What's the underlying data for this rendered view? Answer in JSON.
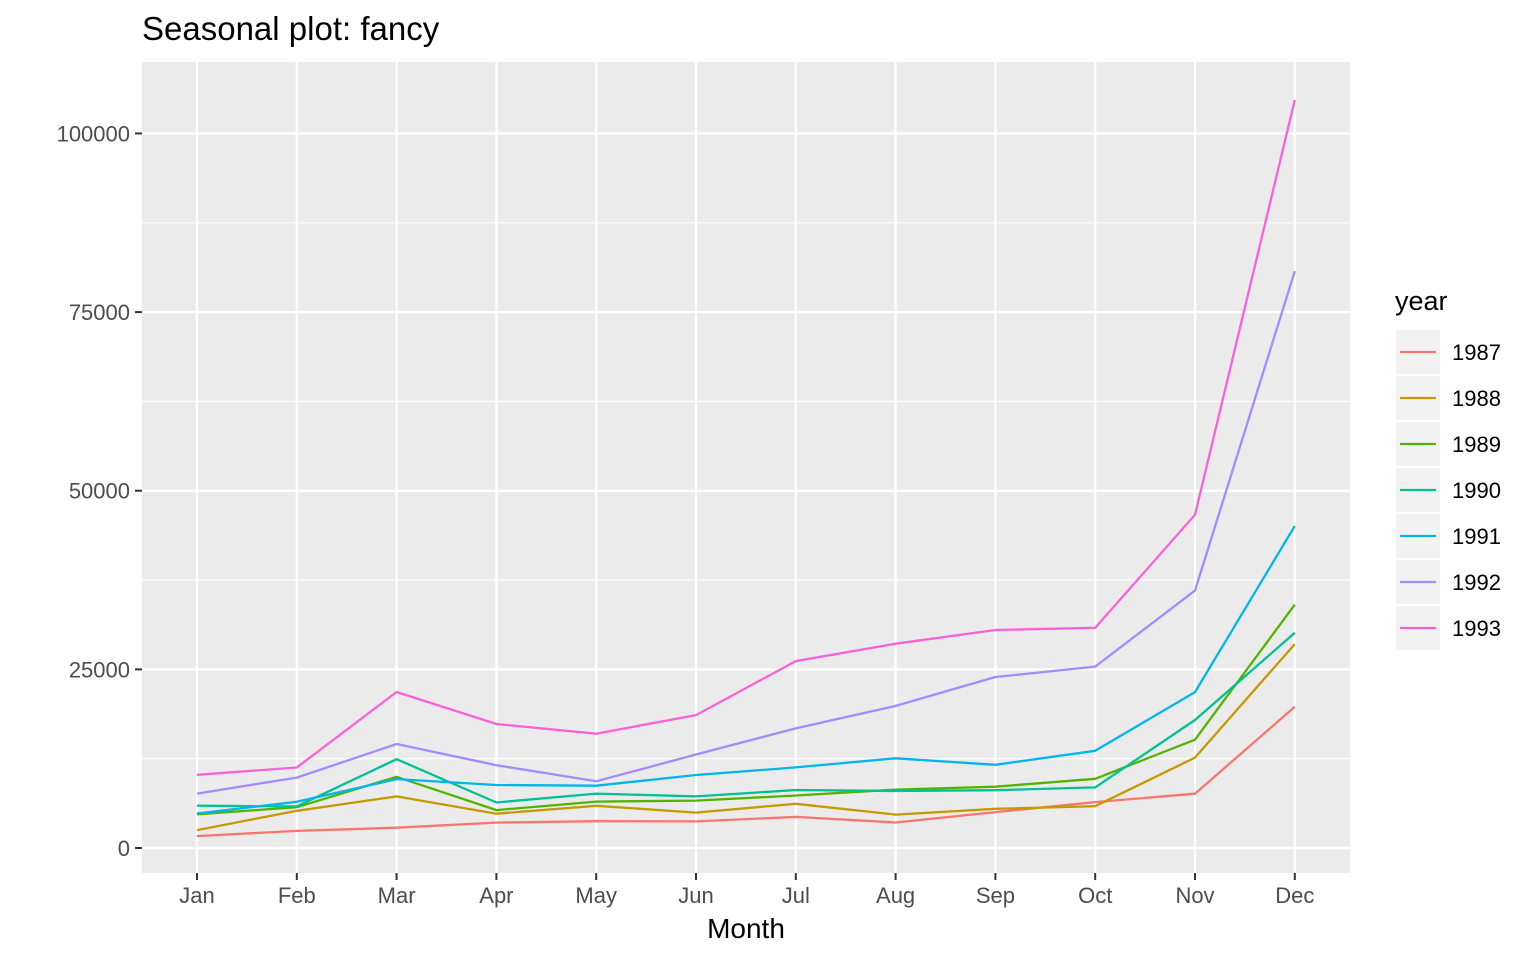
{
  "chart_data": {
    "type": "line",
    "title": "Seasonal plot: fancy",
    "xlabel": "Month",
    "ylabel": "",
    "categories": [
      "Jan",
      "Feb",
      "Mar",
      "Apr",
      "May",
      "Jun",
      "Jul",
      "Aug",
      "Sep",
      "Oct",
      "Nov",
      "Dec"
    ],
    "yticks": [
      0,
      25000,
      50000,
      75000,
      100000
    ],
    "ytick_labels": [
      "0",
      "25000",
      "50000",
      "75000",
      "100000"
    ],
    "ylim": [
      -3500,
      110000
    ],
    "grid": true,
    "legend": {
      "title": "year",
      "position": "right"
    },
    "series": [
      {
        "name": "1987",
        "color": "#F8766D",
        "values": [
          1664,
          2397,
          2841,
          3547,
          3753,
          3715,
          4350,
          3567,
          5022,
          6424,
          7601,
          19756
        ]
      },
      {
        "name": "1988",
        "color": "#C49A00",
        "values": [
          2499,
          5198,
          7225,
          4806,
          5900,
          4951,
          6180,
          4678,
          5486,
          5848,
          12649,
          28541
        ]
      },
      {
        "name": "1989",
        "color": "#53B400",
        "values": [
          4717,
          5703,
          9958,
          5304,
          6492,
          6631,
          7350,
          8177,
          8573,
          9690,
          15151,
          34061
        ]
      },
      {
        "name": "1990",
        "color": "#00C094",
        "values": [
          5921,
          5815,
          12421,
          6370,
          7609,
          7224,
          8121,
          7979,
          8093,
          8476,
          17915,
          30114
        ]
      },
      {
        "name": "1991",
        "color": "#00B6EB",
        "values": [
          4826,
          6470,
          9639,
          8821,
          8722,
          10209,
          11277,
          12552,
          11637,
          13607,
          21822,
          45060
        ]
      },
      {
        "name": "1992",
        "color": "#A58AFF",
        "values": [
          7615,
          9850,
          14558,
          11587,
          9332,
          13082,
          16732,
          19889,
          23933,
          25391,
          36025,
          80721
        ]
      },
      {
        "name": "1993",
        "color": "#FB61D7",
        "values": [
          10243,
          11266,
          21827,
          17357,
          15998,
          18602,
          26155,
          28586,
          30506,
          30821,
          46634,
          104661
        ]
      }
    ]
  }
}
